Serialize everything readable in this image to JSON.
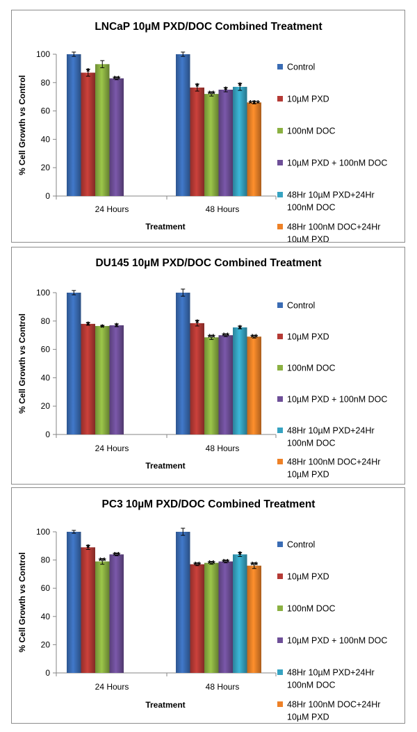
{
  "colors": {
    "control": "#3A6CB4",
    "pxd": "#B53A35",
    "doc": "#8BB142",
    "combo": "#6E4F98",
    "pxd_then_doc": "#36A3C1",
    "doc_then_pxd": "#EE8127"
  },
  "chart_data": [
    {
      "type": "bar",
      "title": "LNCaP 10µM PXD/DOC Combined Treatment",
      "xlabel": "Treatment",
      "ylabel": "% Cell Growth vs Control",
      "ylim": [
        0,
        100
      ],
      "yticks": [
        "0",
        "20",
        "40",
        "60",
        "80",
        "100"
      ],
      "grid": false,
      "legend_position": "right",
      "categories": [
        "24 Hours",
        "48 Hours"
      ],
      "series": [
        {
          "name": "Control",
          "color_key": "control",
          "values": [
            100,
            100
          ],
          "errors": [
            1.5,
            1.5
          ],
          "sig": [
            "",
            ""
          ]
        },
        {
          "name": "10µM PXD",
          "color_key": "pxd",
          "values": [
            87,
            76.5
          ],
          "errors": [
            2.5,
            2.5
          ],
          "sig": [
            "*",
            "*"
          ]
        },
        {
          "name": "100nM DOC",
          "color_key": "doc",
          "values": [
            93,
            72
          ],
          "errors": [
            2.5,
            1.5
          ],
          "sig": [
            "",
            "**"
          ]
        },
        {
          "name": "10µM PXD + 100nM DOC",
          "color_key": "combo",
          "values": [
            83,
            75
          ],
          "errors": [
            1,
            1.5
          ],
          "sig": [
            "**",
            "*"
          ]
        },
        {
          "name": "48Hr 10µM PXD+24Hr 100nM DOC",
          "color_key": "pxd_then_doc",
          "values": [
            null,
            77
          ],
          "errors": [
            null,
            2.5
          ],
          "sig": [
            "",
            "*"
          ]
        },
        {
          "name": "48Hr 100nM DOC+24Hr 10µM PXD",
          "color_key": "doc_then_pxd",
          "values": [
            null,
            66
          ],
          "errors": [
            null,
            1
          ],
          "sig": [
            "",
            "***"
          ]
        }
      ]
    },
    {
      "type": "bar",
      "title": "DU145 10µM PXD/DOC Combined Treatment",
      "xlabel": "Treatment",
      "ylabel": "% Cell Growth vs Control",
      "ylim": [
        0,
        100
      ],
      "yticks": [
        "0",
        "20",
        "40",
        "60",
        "80",
        "100"
      ],
      "grid": false,
      "legend_position": "right",
      "categories": [
        "24 Hours",
        "48 Hours"
      ],
      "series": [
        {
          "name": "Control",
          "color_key": "control",
          "values": [
            100,
            100
          ],
          "errors": [
            1.5,
            2.5
          ],
          "sig": [
            "",
            ""
          ]
        },
        {
          "name": "10µM PXD",
          "color_key": "pxd",
          "values": [
            78,
            78.5
          ],
          "errors": [
            1,
            2
          ],
          "sig": [
            "*",
            "*"
          ]
        },
        {
          "name": "100nM DOC",
          "color_key": "doc",
          "values": [
            76.5,
            68.5
          ],
          "errors": [
            0.5,
            1.5
          ],
          "sig": [
            "*",
            "**"
          ]
        },
        {
          "name": "10µM PXD + 100nM DOC",
          "color_key": "combo",
          "values": [
            77,
            70
          ],
          "errors": [
            1,
            1
          ],
          "sig": [
            "*",
            "**"
          ]
        },
        {
          "name": "48Hr 10µM PXD+24Hr 100nM DOC",
          "color_key": "pxd_then_doc",
          "values": [
            null,
            75.5
          ],
          "errors": [
            null,
            1
          ],
          "sig": [
            "",
            "*"
          ]
        },
        {
          "name": "48Hr 100nM DOC+24Hr 10µM PXD",
          "color_key": "doc_then_pxd",
          "values": [
            null,
            69
          ],
          "errors": [
            null,
            1
          ],
          "sig": [
            "",
            "**"
          ]
        }
      ]
    },
    {
      "type": "bar",
      "title": "PC3 10µM PXD/DOC Combined Treatment",
      "xlabel": "Treatment",
      "ylabel": "% Cell Growth vs Control",
      "ylim": [
        0,
        100
      ],
      "yticks": [
        "0",
        "20",
        "40",
        "60",
        "80",
        "100"
      ],
      "grid": false,
      "legend_position": "right",
      "categories": [
        "24 Hours",
        "48 Hours"
      ],
      "series": [
        {
          "name": "Control",
          "color_key": "control",
          "values": [
            100,
            100
          ],
          "errors": [
            1,
            2.5
          ],
          "sig": [
            "",
            ""
          ]
        },
        {
          "name": "10µM PXD",
          "color_key": "pxd",
          "values": [
            89,
            77
          ],
          "errors": [
            1.5,
            1
          ],
          "sig": [
            "*",
            "**"
          ]
        },
        {
          "name": "100nM DOC",
          "color_key": "doc",
          "values": [
            79,
            78
          ],
          "errors": [
            2,
            1
          ],
          "sig": [
            "**",
            "**"
          ]
        },
        {
          "name": "10µM PXD + 100nM DOC",
          "color_key": "combo",
          "values": [
            84,
            79
          ],
          "errors": [
            1,
            1
          ],
          "sig": [
            "**",
            "**"
          ]
        },
        {
          "name": "48Hr 10µM PXD+24Hr 100nM DOC",
          "color_key": "pxd_then_doc",
          "values": [
            null,
            84
          ],
          "errors": [
            null,
            1.5
          ],
          "sig": [
            "",
            "*"
          ]
        },
        {
          "name": "48Hr 100nM DOC+24Hr 10µM PXD",
          "color_key": "doc_then_pxd",
          "values": [
            null,
            76
          ],
          "errors": [
            null,
            2
          ],
          "sig": [
            "",
            "**"
          ]
        }
      ]
    }
  ]
}
